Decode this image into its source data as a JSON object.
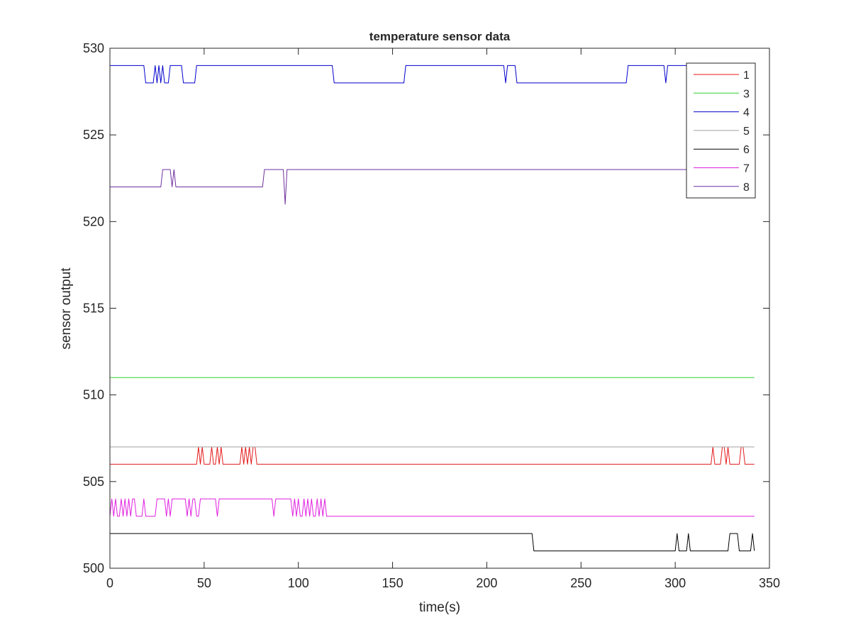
{
  "chart_data": {
    "type": "line",
    "title": "temperature sensor data",
    "xlabel": "time(s)",
    "ylabel": "sensor output",
    "xlim": [
      0,
      350
    ],
    "ylim": [
      500,
      530
    ],
    "xticks": [
      0,
      50,
      100,
      150,
      200,
      250,
      300,
      350
    ],
    "yticks": [
      500,
      505,
      510,
      515,
      520,
      525,
      530
    ],
    "grid": false,
    "legend_position": "top-right",
    "series": [
      {
        "name": "1",
        "color": "#e41a1c",
        "points": [
          [
            0,
            506
          ],
          [
            46,
            506
          ],
          [
            47,
            507
          ],
          [
            48,
            506
          ],
          [
            49,
            507
          ],
          [
            50,
            506
          ],
          [
            53,
            506
          ],
          [
            54,
            507
          ],
          [
            55,
            506
          ],
          [
            56,
            506
          ],
          [
            57,
            507
          ],
          [
            58,
            506
          ],
          [
            59,
            507
          ],
          [
            60,
            506
          ],
          [
            69,
            506
          ],
          [
            70,
            507
          ],
          [
            71,
            506
          ],
          [
            72,
            507
          ],
          [
            73,
            506
          ],
          [
            74,
            507
          ],
          [
            75,
            506
          ],
          [
            76,
            507
          ],
          [
            77,
            507
          ],
          [
            78,
            506
          ],
          [
            319,
            506
          ],
          [
            320,
            507
          ],
          [
            321,
            506
          ],
          [
            324,
            506
          ],
          [
            325,
            507
          ],
          [
            326,
            507
          ],
          [
            327,
            506
          ],
          [
            328,
            507
          ],
          [
            329,
            506
          ],
          [
            334,
            506
          ],
          [
            335,
            507
          ],
          [
            336,
            507
          ],
          [
            337,
            506
          ],
          [
            342,
            506
          ]
        ]
      },
      {
        "name": "3",
        "color": "#2cd42c",
        "points": [
          [
            0,
            511
          ],
          [
            342,
            511
          ]
        ]
      },
      {
        "name": "4",
        "color": "#0000cc",
        "points": [
          [
            0,
            529
          ],
          [
            18,
            529
          ],
          [
            19,
            528
          ],
          [
            23,
            528
          ],
          [
            24,
            529
          ],
          [
            25,
            528
          ],
          [
            26,
            529
          ],
          [
            27,
            528
          ],
          [
            28,
            529
          ],
          [
            29,
            528
          ],
          [
            31,
            528
          ],
          [
            32,
            529
          ],
          [
            38,
            529
          ],
          [
            39,
            528
          ],
          [
            45,
            528
          ],
          [
            46,
            529
          ],
          [
            118,
            529
          ],
          [
            119,
            528
          ],
          [
            156,
            528
          ],
          [
            157,
            529
          ],
          [
            209,
            529
          ],
          [
            210,
            528
          ],
          [
            211,
            529
          ],
          [
            215,
            529
          ],
          [
            216,
            528
          ],
          [
            274,
            528
          ],
          [
            275,
            529
          ],
          [
            294,
            529
          ],
          [
            295,
            528
          ],
          [
            296,
            529
          ],
          [
            342,
            529
          ]
        ]
      },
      {
        "name": "5",
        "color": "#a0a0a0",
        "points": [
          [
            0,
            507
          ],
          [
            342,
            507
          ]
        ]
      },
      {
        "name": "6",
        "color": "#000000",
        "points": [
          [
            0,
            502
          ],
          [
            224,
            502
          ],
          [
            225,
            501
          ],
          [
            300,
            501
          ],
          [
            301,
            502
          ],
          [
            302,
            501
          ],
          [
            306,
            501
          ],
          [
            307,
            502
          ],
          [
            308,
            501
          ],
          [
            328,
            501
          ],
          [
            329,
            502
          ],
          [
            333,
            502
          ],
          [
            334,
            501
          ],
          [
            340,
            501
          ],
          [
            341,
            502
          ],
          [
            342,
            501
          ]
        ]
      },
      {
        "name": "7",
        "color": "#e020e0",
        "points": [
          [
            0,
            503
          ],
          [
            1,
            504
          ],
          [
            2,
            503
          ],
          [
            3,
            504
          ],
          [
            4,
            503
          ],
          [
            5,
            503
          ],
          [
            6,
            504
          ],
          [
            7,
            503
          ],
          [
            8,
            504
          ],
          [
            9,
            503
          ],
          [
            10,
            504
          ],
          [
            11,
            503
          ],
          [
            12,
            504
          ],
          [
            13,
            504
          ],
          [
            14,
            503
          ],
          [
            17,
            503
          ],
          [
            18,
            504
          ],
          [
            19,
            503
          ],
          [
            24,
            503
          ],
          [
            25,
            504
          ],
          [
            29,
            504
          ],
          [
            30,
            503
          ],
          [
            31,
            504
          ],
          [
            32,
            503
          ],
          [
            33,
            504
          ],
          [
            40,
            504
          ],
          [
            41,
            503
          ],
          [
            42,
            504
          ],
          [
            43,
            503
          ],
          [
            44,
            504
          ],
          [
            45,
            504
          ],
          [
            46,
            503
          ],
          [
            47,
            503
          ],
          [
            48,
            504
          ],
          [
            56,
            504
          ],
          [
            57,
            503
          ],
          [
            58,
            504
          ],
          [
            86,
            504
          ],
          [
            87,
            503
          ],
          [
            88,
            504
          ],
          [
            96,
            504
          ],
          [
            97,
            503
          ],
          [
            98,
            504
          ],
          [
            99,
            503
          ],
          [
            100,
            504
          ],
          [
            101,
            503
          ],
          [
            102,
            503
          ],
          [
            103,
            504
          ],
          [
            104,
            503
          ],
          [
            105,
            504
          ],
          [
            106,
            503
          ],
          [
            107,
            504
          ],
          [
            108,
            503
          ],
          [
            109,
            503
          ],
          [
            110,
            504
          ],
          [
            111,
            503
          ],
          [
            112,
            504
          ],
          [
            113,
            503
          ],
          [
            114,
            504
          ],
          [
            115,
            503
          ],
          [
            342,
            503
          ]
        ]
      },
      {
        "name": "8",
        "color": "#7030a0",
        "points": [
          [
            0,
            522
          ],
          [
            27,
            522
          ],
          [
            28,
            523
          ],
          [
            32,
            523
          ],
          [
            33,
            522
          ],
          [
            34,
            523
          ],
          [
            35,
            522
          ],
          [
            81,
            522
          ],
          [
            82,
            523
          ],
          [
            92,
            523
          ],
          [
            93,
            521
          ],
          [
            94,
            523
          ],
          [
            342,
            523
          ]
        ]
      }
    ]
  }
}
